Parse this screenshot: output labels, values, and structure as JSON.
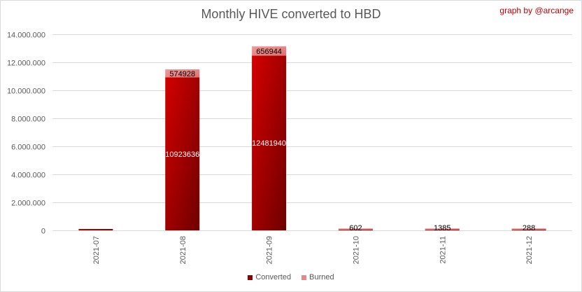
{
  "credit": "graph by @arcange",
  "chart_data": {
    "type": "bar",
    "stacked": true,
    "title": "Monthly HIVE converted to HBD",
    "categories": [
      "2021-07",
      "2021-08",
      "2021-09",
      "2021-10",
      "2021-11",
      "2021-12"
    ],
    "series": [
      {
        "name": "Converted",
        "color": "#c00000",
        "values": [
          70000,
          10923636,
          12481940,
          40000,
          40000,
          40000
        ],
        "labels": [
          "",
          "10923636",
          "12481940",
          "",
          "",
          ""
        ]
      },
      {
        "name": "Burned",
        "color": "#e6878a",
        "values": [
          0,
          574928,
          656944,
          602,
          1385,
          288
        ],
        "labels": [
          "",
          "574928",
          "656944",
          "602",
          "1385",
          "288"
        ]
      }
    ],
    "ylim": [
      0,
      14000000
    ],
    "yticks": [
      0,
      2000000,
      4000000,
      6000000,
      8000000,
      10000000,
      12000000,
      14000000
    ],
    "ytick_labels": [
      "0",
      "2.000.000",
      "4.000.000",
      "6.000.000",
      "8.000.000",
      "10.000.000",
      "12.000.000",
      "14.000.000"
    ],
    "grid": true,
    "legend_position": "bottom"
  }
}
